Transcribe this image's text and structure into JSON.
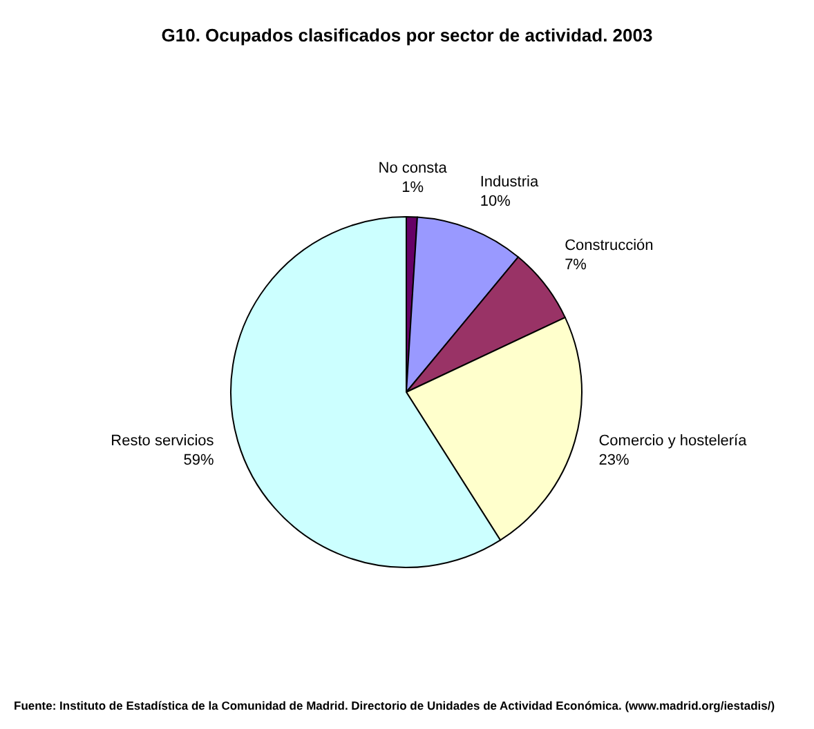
{
  "chart_data": {
    "type": "pie",
    "title": "G10. Ocupados clasificados por sector de actividad. 2003",
    "categories": [
      "No consta",
      "Industria",
      "Construcción",
      "Comercio y hostelería",
      "Resto servicios"
    ],
    "values": [
      1,
      10,
      7,
      23,
      59
    ],
    "value_labels": [
      "1%",
      "10%",
      "7%",
      "23%",
      "59%"
    ],
    "colors": [
      "#660066",
      "#9999ff",
      "#993366",
      "#ffffcc",
      "#ccffff"
    ],
    "annotations": [
      "Fuente: Instituto de Estadística de la Comunidad de Madrid. Directorio de Unidades de Actividad Económica. (www.madrid.org/iestadis/)"
    ]
  }
}
